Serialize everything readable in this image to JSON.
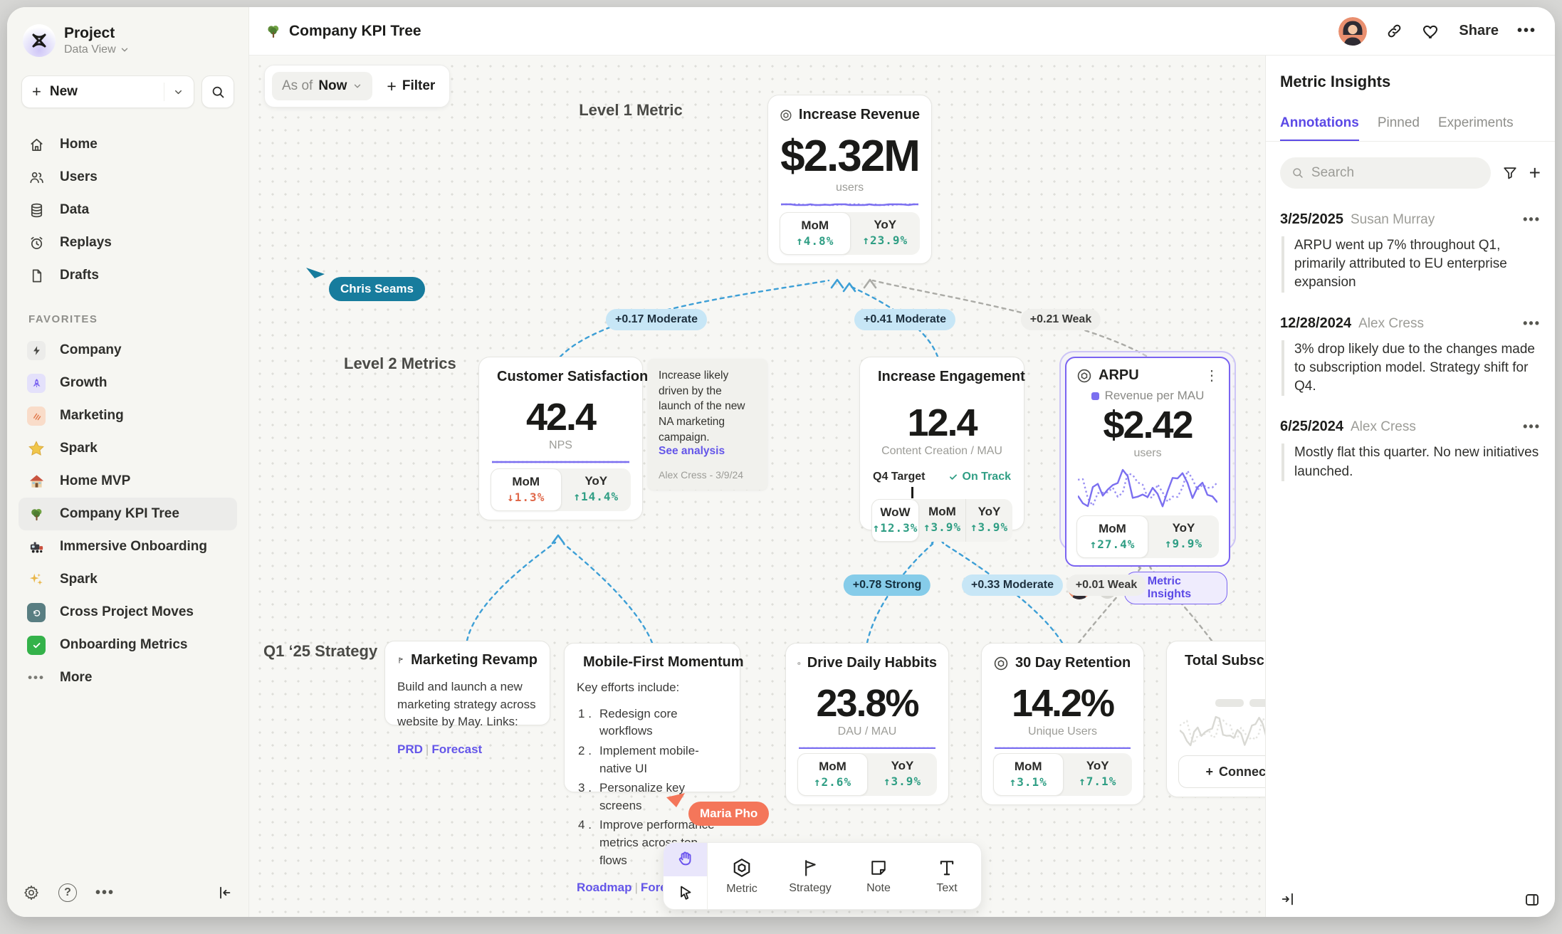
{
  "app": {
    "project": "Project",
    "workspace": "Data View"
  },
  "topbar": {
    "title": "Company KPI Tree",
    "share_label": "Share"
  },
  "sidebar": {
    "new_label": "New",
    "nav": [
      {
        "label": "Home"
      },
      {
        "label": "Users"
      },
      {
        "label": "Data"
      },
      {
        "label": "Replays"
      },
      {
        "label": "Drafts"
      }
    ],
    "favorites_header": "FAVORITES",
    "favorites": [
      {
        "label": "Company"
      },
      {
        "label": "Growth"
      },
      {
        "label": "Marketing"
      },
      {
        "label": "Spark"
      },
      {
        "label": "Home MVP"
      },
      {
        "label": "Company KPI Tree"
      },
      {
        "label": "Immersive Onboarding"
      },
      {
        "label": "Spark"
      },
      {
        "label": "Cross Project Moves"
      },
      {
        "label": "Onboarding Metrics"
      }
    ],
    "more_label": "More"
  },
  "controls": {
    "as_of": "As of",
    "as_of_value": "Now",
    "filter_label": "Filter"
  },
  "canvas": {
    "level1_label": "Level 1 Metric",
    "level2_label": "Level 2 Metrics",
    "strategy_label": "Q1 ‘25 Strategy",
    "edges": {
      "e1": "+0.17 Moderate",
      "e2": "+0.41 Moderate",
      "e3": "+0.21 Weak",
      "e4": "+0.78 Strong",
      "e5": "+0.33 Moderate",
      "e6": "+0.01 Weak"
    },
    "cursors": {
      "c1": "Chris Seams",
      "c2": "Maria Pho"
    },
    "note": {
      "text": "Increase likely driven by the launch of the new NA marketing campaign.",
      "link": "See analysis",
      "author": "Alex Cress - 3/9/24"
    }
  },
  "cards": {
    "revenue": {
      "title": "Increase Revenue",
      "value": "$2.32M",
      "unit": "users",
      "stats": [
        {
          "label": "MoM",
          "value": "↑4.8%"
        },
        {
          "label": "YoY",
          "value": "↑23.9%"
        }
      ]
    },
    "satisfaction": {
      "title": "Customer Satisfaction",
      "value": "42.4",
      "unit": "NPS",
      "stats": [
        {
          "label": "MoM",
          "value": "↓1.3%"
        },
        {
          "label": "YoY",
          "value": "↑14.4%"
        }
      ]
    },
    "engagement": {
      "title": "Increase Engagement",
      "value": "12.4",
      "unit": "Content Creation / MAU",
      "target_label": "Q4 Target",
      "target_status": "On Track",
      "stats": [
        {
          "label": "WoW",
          "value": "↑12.3%"
        },
        {
          "label": "MoM",
          "value": "↑3.9%"
        },
        {
          "label": "YoY",
          "value": "↑3.9%"
        }
      ]
    },
    "arpu": {
      "title": "ARPU",
      "legend": "Revenue per MAU",
      "value": "$2.42",
      "unit": "users",
      "stats": [
        {
          "label": "MoM",
          "value": "↑27.4%"
        },
        {
          "label": "YoY",
          "value": "↑9.9%"
        }
      ],
      "insights_label": "Metric Insights"
    },
    "habits": {
      "title": "Drive Daily Habbits",
      "value": "23.8%",
      "unit": "DAU / MAU",
      "stats": [
        {
          "label": "MoM",
          "value": "↑2.6%"
        },
        {
          "label": "YoY",
          "value": "↑3.9%"
        }
      ]
    },
    "retention": {
      "title": "30 Day Retention",
      "value": "14.2%",
      "unit": "Unique Users",
      "stats": [
        {
          "label": "MoM",
          "value": "↑3.1%"
        },
        {
          "label": "YoY",
          "value": "↑7.1%"
        }
      ]
    },
    "subscriptions": {
      "title": "Total Subscript",
      "connect_label": "Connect"
    },
    "marketing": {
      "title": "Marketing Revamp",
      "body": "Build and launch a new marketing strategy across website by May. Links:",
      "links": {
        "a": "PRD",
        "sep": "|",
        "b": "Forecast"
      }
    },
    "mobile": {
      "title": "Mobile-First Momentum",
      "body": "Key efforts include:",
      "items": [
        "Redesign core workflows",
        "Implement mobile-native UI",
        "Personalize key screens",
        "Improve performance metrics across top flows"
      ],
      "links": {
        "a": "Roadmap",
        "sep": "|",
        "b": "Forecast"
      }
    }
  },
  "toolbar": {
    "tools": [
      {
        "label": "Metric"
      },
      {
        "label": "Strategy"
      },
      {
        "label": "Note"
      },
      {
        "label": "Text"
      }
    ]
  },
  "panel": {
    "title": "Metric Insights",
    "tabs": [
      {
        "label": "Annotations"
      },
      {
        "label": "Pinned"
      },
      {
        "label": "Experiments"
      }
    ],
    "search_placeholder": "Search",
    "annotations": [
      {
        "date": "3/25/2025",
        "author": "Susan Murray",
        "text": "ARPU went up 7% throughout Q1, primarily attributed to EU enterprise expansion"
      },
      {
        "date": "12/28/2024",
        "author": "Alex Cress",
        "text": "3% drop likely due to the changes made to subscription model. Strategy shift for Q4."
      },
      {
        "date": "6/25/2024",
        "author": "Alex Cress",
        "text": "Mostly flat this quarter. No new initiatives launched."
      }
    ]
  },
  "colors": {
    "accent": "#6456e9",
    "positive": "#2f9e84",
    "negative": "#e0694b",
    "edge_blue": "#3d9fd6",
    "edge_gray": "#ababa6",
    "cursor_teal": "#177c9d",
    "cursor_orange": "#f4765a"
  }
}
